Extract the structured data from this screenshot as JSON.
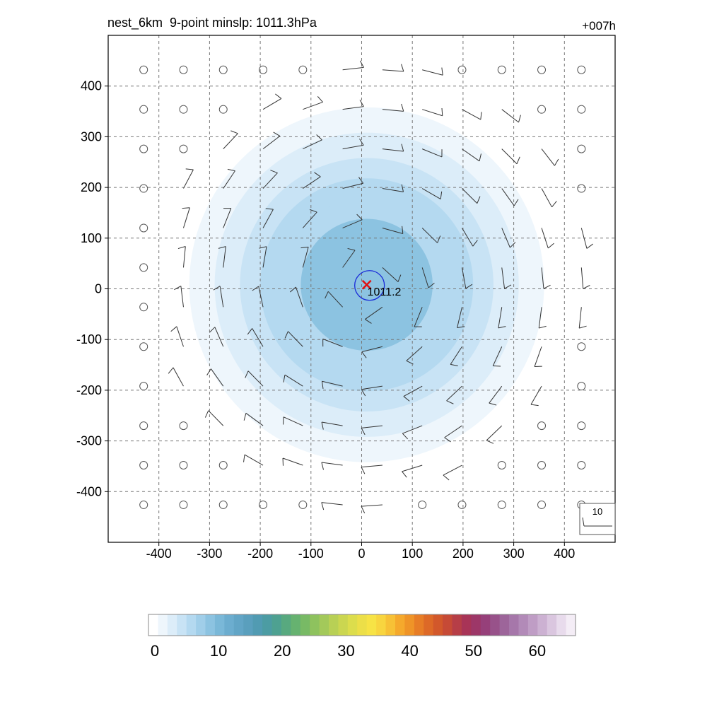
{
  "header": {
    "title": "nest_6km  9-point minslp: 1011.3hPa",
    "forecast_hour": "+007h"
  },
  "chart_data": {
    "type": "heatmap",
    "title": "nest_6km  9-point minslp: 1011.3hPa",
    "xlim": [
      -500,
      500
    ],
    "ylim": [
      -500,
      500
    ],
    "x_ticks": [
      -400,
      -300,
      -200,
      -100,
      0,
      100,
      200,
      300,
      400
    ],
    "y_ticks": [
      -400,
      -300,
      -200,
      -100,
      0,
      100,
      200,
      300,
      400
    ],
    "x_tick_labels": [
      "-400",
      "-300",
      "-200",
      "-100",
      "0",
      "100",
      "200",
      "300",
      "400"
    ],
    "y_tick_labels": [
      "-400",
      "-300",
      "-200",
      "-100",
      "0",
      "100",
      "200",
      "300",
      "400"
    ],
    "grid": true,
    "wind_speed_rings": [
      {
        "radius_km": 400,
        "value": 1
      },
      {
        "radius_km": 350,
        "value": 2
      },
      {
        "radius_km": 300,
        "value": 4
      },
      {
        "radius_km": 250,
        "value": 5
      },
      {
        "radius_km": 210,
        "value": 6
      },
      {
        "radius_km": 170,
        "value": 7
      },
      {
        "radius_km": 130,
        "value": 9
      }
    ],
    "center": {
      "x": 10,
      "y": 8,
      "label": "1011.2",
      "marker_color": "#e01010",
      "contour_color": "#1a2bd8"
    },
    "wind_barb_key": "10",
    "colorbar": {
      "min": 0,
      "max": 66,
      "tick_values": [
        0,
        10,
        20,
        30,
        40,
        50,
        60
      ],
      "tick_labels": [
        "0",
        "10",
        "20",
        "30",
        "40",
        "50",
        "60"
      ],
      "colors": [
        "#ffffff",
        "#eef6fc",
        "#dcedf9",
        "#c8e3f5",
        "#b4d9f0",
        "#a0cee9",
        "#8cc3e1",
        "#7ab8d8",
        "#6cadcf",
        "#62a5c6",
        "#5a9fbd",
        "#519bb2",
        "#4c9ca3",
        "#4ea191",
        "#58a97f",
        "#66b270",
        "#78ba65",
        "#8ec25e",
        "#a3c95a",
        "#b8d055",
        "#cbd650",
        "#dcdd4c",
        "#ecdf48",
        "#f7e345",
        "#f8d53f",
        "#f7c136",
        "#f5a92c",
        "#ef9427",
        "#e77d26",
        "#dd6927",
        "#d2582b",
        "#c64a36",
        "#b63e47",
        "#a83457",
        "#9d3768",
        "#96407a",
        "#98528a",
        "#9d659a",
        "#a677aa",
        "#b28ab8",
        "#bf9dc5",
        "#ccb1d2",
        "#dac6df",
        "#e8dbec",
        "#f4edf6"
      ]
    }
  }
}
